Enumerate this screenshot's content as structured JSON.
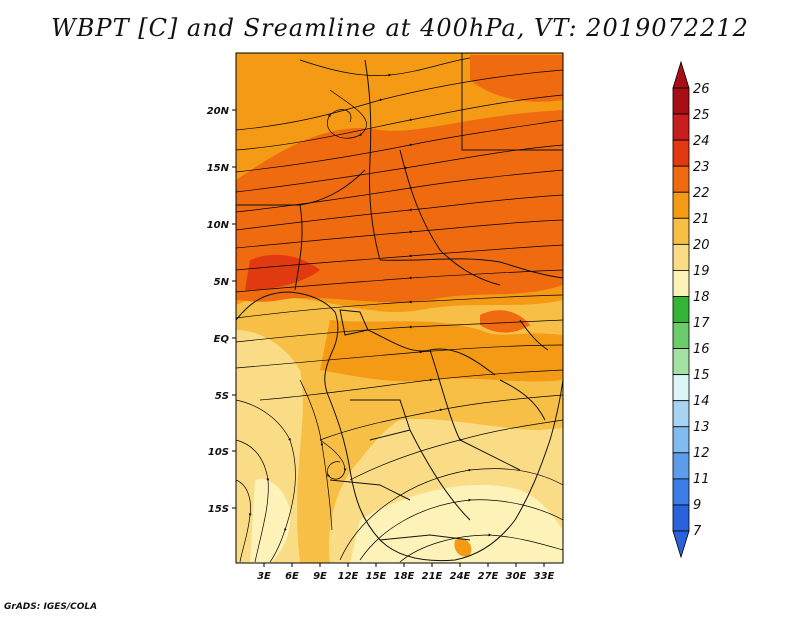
{
  "title": "WBPT [C] and Sreamline at 400hPa, VT: 2019072212",
  "credit": "GrADS: IGES/COLA",
  "map": {
    "lon_range": [
      0,
      35
    ],
    "lat_range": [
      -20,
      24
    ],
    "lon_ticks": [
      "3E",
      "6E",
      "9E",
      "12E",
      "15E",
      "18E",
      "21E",
      "24E",
      "27E",
      "30E",
      "33E"
    ],
    "lat_ticks": [
      "20N",
      "15N",
      "10N",
      "5N",
      "EQ",
      "5S",
      "10S",
      "15S"
    ]
  },
  "colorbar": {
    "labels": [
      "26",
      "25",
      "24",
      "23",
      "22",
      "21",
      "20",
      "19",
      "18",
      "17",
      "16",
      "15",
      "14",
      "13",
      "12",
      "11",
      "9",
      "7"
    ],
    "colors": [
      "#a50f15",
      "#c81e1e",
      "#e23a10",
      "#f06a10",
      "#f59a14",
      "#f8bf46",
      "#fbdc86",
      "#fdf2b8",
      "#35b435",
      "#6ccc6c",
      "#a3e2a3",
      "#dcf6f6",
      "#a8d4f4",
      "#82bbf0",
      "#5c9ceb",
      "#3c7ee6",
      "#2a62db"
    ]
  }
}
